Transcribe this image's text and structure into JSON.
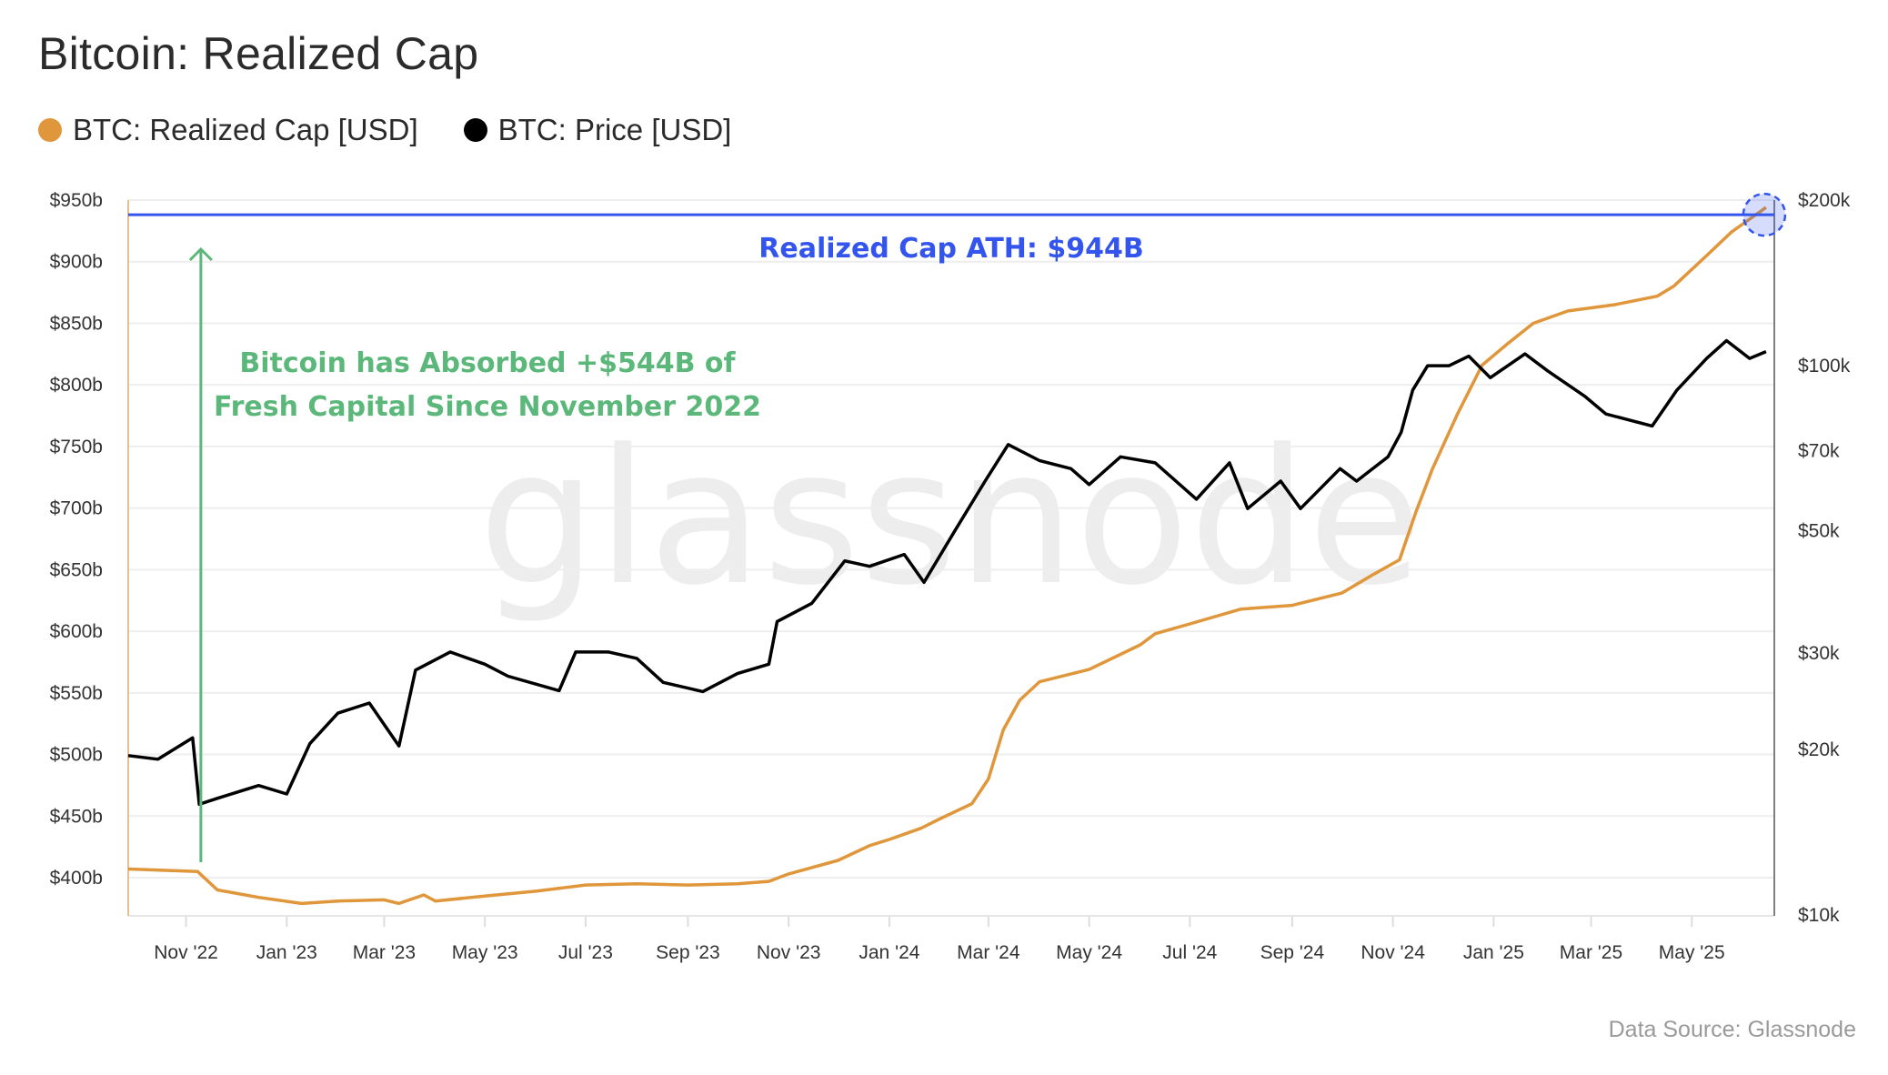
{
  "title": "Bitcoin: Realized Cap",
  "legend": [
    {
      "label": "BTC: Realized Cap [USD]",
      "color": "#e0963a"
    },
    {
      "label": "BTC: Price [USD]",
      "color": "#000000"
    }
  ],
  "source": "Data Source: Glassnode",
  "watermark": "glassnode",
  "chart_data": {
    "type": "line",
    "title": "Bitcoin: Realized Cap",
    "x_range": [
      "2022-09-27",
      "2025-06-20"
    ],
    "x_ticks": [
      {
        "date": "2022-11-01",
        "label": "Nov '22"
      },
      {
        "date": "2023-01-01",
        "label": "Jan '23"
      },
      {
        "date": "2023-03-01",
        "label": "Mar '23"
      },
      {
        "date": "2023-05-01",
        "label": "May '23"
      },
      {
        "date": "2023-07-01",
        "label": "Jul '23"
      },
      {
        "date": "2023-09-01",
        "label": "Sep '23"
      },
      {
        "date": "2023-11-01",
        "label": "Nov '23"
      },
      {
        "date": "2024-01-01",
        "label": "Jan '24"
      },
      {
        "date": "2024-03-01",
        "label": "Mar '24"
      },
      {
        "date": "2024-05-01",
        "label": "May '24"
      },
      {
        "date": "2024-07-01",
        "label": "Jul '24"
      },
      {
        "date": "2024-09-01",
        "label": "Sep '24"
      },
      {
        "date": "2024-11-01",
        "label": "Nov '24"
      },
      {
        "date": "2025-01-01",
        "label": "Jan '25"
      },
      {
        "date": "2025-03-01",
        "label": "Mar '25"
      },
      {
        "date": "2025-05-01",
        "label": "May '25"
      }
    ],
    "y_left": {
      "scale": "linear",
      "range": [
        369,
        950
      ],
      "unit": "billion USD",
      "ticks": [
        {
          "value": 400,
          "label": "$400b"
        },
        {
          "value": 450,
          "label": "$450b"
        },
        {
          "value": 500,
          "label": "$500b"
        },
        {
          "value": 550,
          "label": "$550b"
        },
        {
          "value": 600,
          "label": "$600b"
        },
        {
          "value": 650,
          "label": "$650b"
        },
        {
          "value": 700,
          "label": "$700b"
        },
        {
          "value": 750,
          "label": "$750b"
        },
        {
          "value": 800,
          "label": "$800b"
        },
        {
          "value": 850,
          "label": "$850b"
        },
        {
          "value": 900,
          "label": "$900b"
        },
        {
          "value": 950,
          "label": "$950b"
        }
      ]
    },
    "y_right": {
      "scale": "log",
      "range": [
        10000,
        200000
      ],
      "unit": "USD",
      "ticks": [
        {
          "value": 10000,
          "label": "$10k"
        },
        {
          "value": 20000,
          "label": "$20k"
        },
        {
          "value": 30000,
          "label": "$30k"
        },
        {
          "value": 50000,
          "label": "$50k"
        },
        {
          "value": 70000,
          "label": "$70k"
        },
        {
          "value": 100000,
          "label": "$100k"
        },
        {
          "value": 200000,
          "label": "$200k"
        }
      ]
    },
    "grid": true,
    "legend_position": "top-left",
    "series": [
      {
        "name": "BTC: Realized Cap [USD]",
        "axis": "left",
        "color": "#e0963a",
        "points": [
          [
            "2022-09-27",
            407
          ],
          [
            "2022-11-08",
            405
          ],
          [
            "2022-11-20",
            390
          ],
          [
            "2022-12-15",
            384
          ],
          [
            "2023-01-10",
            379
          ],
          [
            "2023-02-01",
            381
          ],
          [
            "2023-03-01",
            382
          ],
          [
            "2023-03-10",
            379
          ],
          [
            "2023-03-25",
            386
          ],
          [
            "2023-04-01",
            381
          ],
          [
            "2023-05-01",
            385
          ],
          [
            "2023-06-01",
            389
          ],
          [
            "2023-07-01",
            394
          ],
          [
            "2023-08-01",
            395
          ],
          [
            "2023-09-01",
            394
          ],
          [
            "2023-10-01",
            395
          ],
          [
            "2023-10-20",
            397
          ],
          [
            "2023-11-01",
            403
          ],
          [
            "2023-12-01",
            414
          ],
          [
            "2023-12-20",
            426
          ],
          [
            "2024-01-01",
            431
          ],
          [
            "2024-01-20",
            440
          ],
          [
            "2024-02-01",
            448
          ],
          [
            "2024-02-20",
            460
          ],
          [
            "2024-03-01",
            480
          ],
          [
            "2024-03-10",
            520
          ],
          [
            "2024-03-20",
            544
          ],
          [
            "2024-04-01",
            559
          ],
          [
            "2024-05-01",
            569
          ],
          [
            "2024-06-01",
            589
          ],
          [
            "2024-06-10",
            598
          ],
          [
            "2024-07-01",
            606
          ],
          [
            "2024-08-01",
            618
          ],
          [
            "2024-09-01",
            621
          ],
          [
            "2024-10-01",
            631
          ],
          [
            "2024-10-20",
            646
          ],
          [
            "2024-11-05",
            658
          ],
          [
            "2024-11-15",
            697
          ],
          [
            "2024-11-25",
            732
          ],
          [
            "2024-12-10",
            776
          ],
          [
            "2024-12-25",
            816
          ],
          [
            "2025-01-10",
            834
          ],
          [
            "2025-01-25",
            850
          ],
          [
            "2025-02-15",
            860
          ],
          [
            "2025-03-15",
            865
          ],
          [
            "2025-04-10",
            872
          ],
          [
            "2025-04-20",
            880
          ],
          [
            "2025-05-10",
            905
          ],
          [
            "2025-05-25",
            924
          ],
          [
            "2025-06-15",
            944
          ]
        ]
      },
      {
        "name": "BTC: Price [USD]",
        "axis": "right",
        "color": "#000000",
        "points": [
          [
            "2022-09-27",
            19500
          ],
          [
            "2022-10-15",
            19200
          ],
          [
            "2022-11-05",
            21000
          ],
          [
            "2022-11-09",
            15900
          ],
          [
            "2022-11-20",
            16300
          ],
          [
            "2022-12-15",
            17200
          ],
          [
            "2023-01-01",
            16600
          ],
          [
            "2023-01-15",
            20500
          ],
          [
            "2023-02-01",
            23300
          ],
          [
            "2023-02-20",
            24300
          ],
          [
            "2023-03-10",
            20300
          ],
          [
            "2023-03-20",
            27900
          ],
          [
            "2023-04-10",
            30100
          ],
          [
            "2023-05-01",
            28600
          ],
          [
            "2023-05-15",
            27200
          ],
          [
            "2023-06-15",
            25600
          ],
          [
            "2023-06-25",
            30100
          ],
          [
            "2023-07-15",
            30100
          ],
          [
            "2023-08-01",
            29300
          ],
          [
            "2023-08-17",
            26500
          ],
          [
            "2023-09-10",
            25500
          ],
          [
            "2023-10-01",
            27500
          ],
          [
            "2023-10-20",
            28600
          ],
          [
            "2023-10-25",
            34200
          ],
          [
            "2023-11-15",
            36900
          ],
          [
            "2023-12-05",
            44100
          ],
          [
            "2023-12-20",
            43100
          ],
          [
            "2024-01-10",
            45300
          ],
          [
            "2024-01-22",
            40300
          ],
          [
            "2024-02-10",
            50200
          ],
          [
            "2024-02-28",
            61600
          ],
          [
            "2024-03-13",
            71800
          ],
          [
            "2024-04-01",
            67100
          ],
          [
            "2024-04-20",
            64900
          ],
          [
            "2024-05-01",
            60700
          ],
          [
            "2024-05-20",
            68200
          ],
          [
            "2024-06-10",
            66500
          ],
          [
            "2024-07-05",
            57100
          ],
          [
            "2024-07-25",
            66500
          ],
          [
            "2024-08-05",
            54900
          ],
          [
            "2024-08-25",
            61600
          ],
          [
            "2024-09-06",
            54900
          ],
          [
            "2024-09-30",
            64900
          ],
          [
            "2024-10-10",
            61600
          ],
          [
            "2024-10-29",
            68200
          ],
          [
            "2024-11-06",
            75600
          ],
          [
            "2024-11-13",
            90200
          ],
          [
            "2024-11-22",
            99900
          ],
          [
            "2024-12-05",
            99900
          ],
          [
            "2024-12-17",
            104000
          ],
          [
            "2024-12-30",
            95000
          ],
          [
            "2025-01-20",
            105000
          ],
          [
            "2025-02-03",
            97600
          ],
          [
            "2025-02-25",
            88000
          ],
          [
            "2025-03-10",
            81600
          ],
          [
            "2025-04-07",
            77600
          ],
          [
            "2025-04-22",
            90200
          ],
          [
            "2025-05-10",
            103000
          ],
          [
            "2025-05-22",
            111000
          ],
          [
            "2025-06-05",
            103000
          ],
          [
            "2025-06-15",
            106000
          ]
        ]
      }
    ],
    "annotations": {
      "ath_label": "Realized Cap ATH: $944B",
      "ath_value": 944,
      "ath_color": "#3355ee",
      "absorbed_line1": "Bitcoin has Absorbed +$544B of",
      "absorbed_line2": "Fresh Capital Since November 2022",
      "absorbed_color": "#5bb87a",
      "arrow_from": [
        "2022-11-10",
        400
      ],
      "arrow_to": [
        "2022-11-10",
        944
      ]
    }
  }
}
